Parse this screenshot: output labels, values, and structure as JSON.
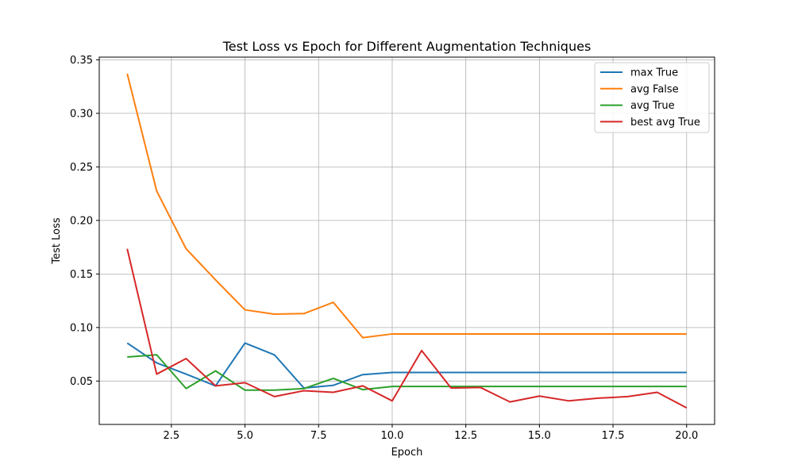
{
  "chart_data": {
    "type": "line",
    "title": "Test Loss vs Epoch for Different Augmentation Techniques",
    "xlabel": "Epoch",
    "ylabel": "Test Loss",
    "xlim": [
      0.05,
      20.95
    ],
    "ylim": [
      0.0095,
      0.3525
    ],
    "xticks": [
      2.5,
      5.0,
      7.5,
      10.0,
      12.5,
      15.0,
      17.5,
      20.0
    ],
    "xtick_labels": [
      "2.5",
      "5.0",
      "7.5",
      "10.0",
      "12.5",
      "15.0",
      "17.5",
      "20.0"
    ],
    "yticks": [
      0.05,
      0.1,
      0.15,
      0.2,
      0.25,
      0.3,
      0.35
    ],
    "ytick_labels": [
      "0.05",
      "0.10",
      "0.15",
      "0.20",
      "0.25",
      "0.30",
      "0.35"
    ],
    "grid": true,
    "legend_position": "top-right",
    "x": [
      1,
      2,
      3,
      4,
      5,
      6,
      7,
      8,
      9,
      10,
      11,
      12,
      13,
      14,
      15,
      16,
      17,
      18,
      19,
      20
    ],
    "series": [
      {
        "name": "max True",
        "color": "#1f77b4",
        "values": [
          0.0855,
          0.067,
          0.0565,
          0.0455,
          0.0855,
          0.0745,
          0.0435,
          0.046,
          0.056,
          0.058,
          0.058,
          0.058,
          0.058,
          0.058,
          0.058,
          0.058,
          0.058,
          0.058,
          0.058,
          0.058
        ]
      },
      {
        "name": "avg False",
        "color": "#ff7f0e",
        "values": [
          0.337,
          0.2275,
          0.1735,
          0.1445,
          0.1165,
          0.1125,
          0.113,
          0.1235,
          0.0905,
          0.094,
          0.094,
          0.094,
          0.094,
          0.094,
          0.094,
          0.094,
          0.094,
          0.094,
          0.094,
          0.094
        ]
      },
      {
        "name": "avg True",
        "color": "#2ca02c",
        "values": [
          0.0725,
          0.0745,
          0.043,
          0.0595,
          0.0415,
          0.0415,
          0.043,
          0.0525,
          0.042,
          0.045,
          0.045,
          0.045,
          0.045,
          0.045,
          0.045,
          0.045,
          0.045,
          0.045,
          0.045,
          0.045
        ]
      },
      {
        "name": "best avg True",
        "color": "#d62728",
        "values": [
          0.1735,
          0.0565,
          0.071,
          0.0455,
          0.0485,
          0.0355,
          0.041,
          0.0395,
          0.0455,
          0.0315,
          0.0785,
          0.0435,
          0.044,
          0.0305,
          0.036,
          0.0315,
          0.034,
          0.0355,
          0.0395,
          0.025
        ]
      }
    ]
  }
}
